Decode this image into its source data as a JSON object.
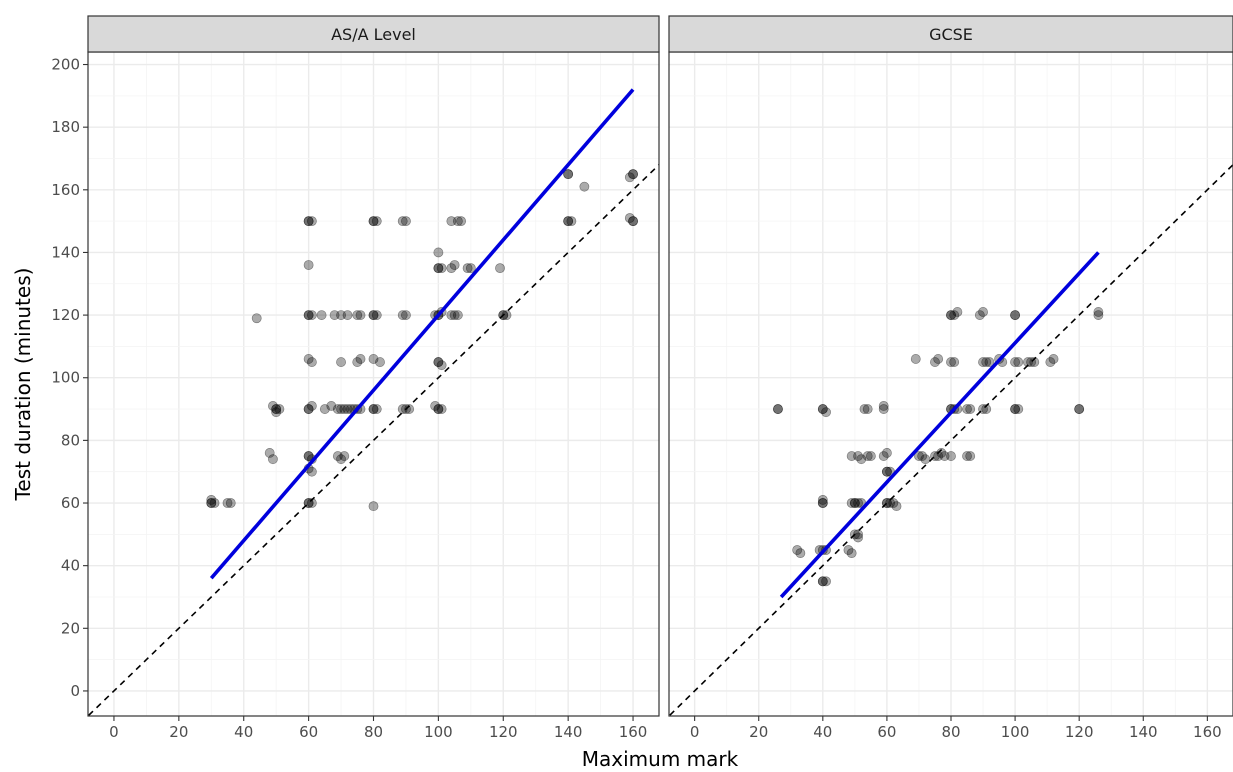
{
  "chart_data": {
    "type": "scatter",
    "xlabel": "Maximum mark",
    "ylabel": "Test duration (minutes)",
    "xlim": [
      -8,
      168
    ],
    "ylim": [
      -8,
      204
    ],
    "x_ticks": [
      0,
      20,
      40,
      60,
      80,
      100,
      120,
      140,
      160
    ],
    "y_ticks": [
      0,
      20,
      40,
      60,
      80,
      100,
      120,
      140,
      160,
      180,
      200
    ],
    "grid": true,
    "reference_line": {
      "style": "dashed",
      "slope": 1,
      "intercept": 0,
      "color": "#000000"
    },
    "fit_color": "#0000dd",
    "point_color": "#000000",
    "panels": [
      {
        "title": "AS/A Level",
        "fit_line": {
          "x": [
            30,
            160
          ],
          "y": [
            36,
            192
          ]
        },
        "points": [
          [
            30,
            60
          ],
          [
            30,
            60
          ],
          [
            31,
            60
          ],
          [
            30,
            61
          ],
          [
            35,
            60
          ],
          [
            36,
            60
          ],
          [
            44,
            119
          ],
          [
            48,
            76
          ],
          [
            49,
            74
          ],
          [
            50,
            90
          ],
          [
            50,
            90
          ],
          [
            49,
            91
          ],
          [
            51,
            90
          ],
          [
            50,
            89
          ],
          [
            60,
            150
          ],
          [
            60,
            150
          ],
          [
            61,
            150
          ],
          [
            60,
            136
          ],
          [
            60,
            120
          ],
          [
            60,
            120
          ],
          [
            61,
            120
          ],
          [
            64,
            120
          ],
          [
            60,
            106
          ],
          [
            61,
            105
          ],
          [
            60,
            90
          ],
          [
            60,
            90
          ],
          [
            61,
            91
          ],
          [
            60,
            75
          ],
          [
            60,
            75
          ],
          [
            61,
            74
          ],
          [
            60,
            71
          ],
          [
            61,
            70
          ],
          [
            60,
            60
          ],
          [
            60,
            60
          ],
          [
            61,
            60
          ],
          [
            65,
            90
          ],
          [
            67,
            91
          ],
          [
            69,
            90
          ],
          [
            70,
            90
          ],
          [
            71,
            90
          ],
          [
            72,
            90
          ],
          [
            73,
            90
          ],
          [
            74,
            90
          ],
          [
            75,
            90
          ],
          [
            76,
            90
          ],
          [
            68,
            120
          ],
          [
            70,
            120
          ],
          [
            72,
            120
          ],
          [
            75,
            120
          ],
          [
            76,
            120
          ],
          [
            70,
            105
          ],
          [
            75,
            105
          ],
          [
            76,
            106
          ],
          [
            69,
            75
          ],
          [
            70,
            74
          ],
          [
            71,
            75
          ],
          [
            80,
            150
          ],
          [
            80,
            150
          ],
          [
            81,
            150
          ],
          [
            80,
            120
          ],
          [
            80,
            120
          ],
          [
            81,
            120
          ],
          [
            80,
            106
          ],
          [
            82,
            105
          ],
          [
            80,
            90
          ],
          [
            80,
            90
          ],
          [
            81,
            90
          ],
          [
            80,
            59
          ],
          [
            90,
            150
          ],
          [
            89,
            150
          ],
          [
            90,
            120
          ],
          [
            89,
            120
          ],
          [
            90,
            90
          ],
          [
            89,
            90
          ],
          [
            91,
            90
          ],
          [
            100,
            140
          ],
          [
            100,
            135
          ],
          [
            100,
            135
          ],
          [
            101,
            135
          ],
          [
            100,
            120
          ],
          [
            100,
            120
          ],
          [
            99,
            120
          ],
          [
            101,
            121
          ],
          [
            100,
            105
          ],
          [
            100,
            105
          ],
          [
            101,
            104
          ],
          [
            100,
            90
          ],
          [
            100,
            90
          ],
          [
            101,
            90
          ],
          [
            99,
            91
          ],
          [
            104,
            150
          ],
          [
            106,
            150
          ],
          [
            107,
            150
          ],
          [
            104,
            135
          ],
          [
            105,
            136
          ],
          [
            109,
            135
          ],
          [
            110,
            135
          ],
          [
            104,
            120
          ],
          [
            105,
            120
          ],
          [
            106,
            120
          ],
          [
            119,
            135
          ],
          [
            120,
            120
          ],
          [
            120,
            120
          ],
          [
            121,
            120
          ],
          [
            140,
            165
          ],
          [
            140,
            165
          ],
          [
            140,
            150
          ],
          [
            140,
            150
          ],
          [
            141,
            150
          ],
          [
            145,
            161
          ],
          [
            160,
            165
          ],
          [
            160,
            165
          ],
          [
            159,
            164
          ],
          [
            160,
            150
          ],
          [
            160,
            150
          ],
          [
            159,
            151
          ]
        ]
      },
      {
        "title": "GCSE",
        "fit_line": {
          "x": [
            27,
            126
          ],
          "y": [
            30,
            140
          ]
        },
        "points": [
          [
            26,
            90
          ],
          [
            26,
            90
          ],
          [
            32,
            45
          ],
          [
            33,
            44
          ],
          [
            40,
            90
          ],
          [
            40,
            90
          ],
          [
            41,
            89
          ],
          [
            40,
            61
          ],
          [
            40,
            60
          ],
          [
            40,
            60
          ],
          [
            40,
            45
          ],
          [
            41,
            45
          ],
          [
            39,
            45
          ],
          [
            40,
            35
          ],
          [
            40,
            35
          ],
          [
            41,
            35
          ],
          [
            48,
            45
          ],
          [
            49,
            44
          ],
          [
            49,
            75
          ],
          [
            51,
            75
          ],
          [
            52,
            74
          ],
          [
            50,
            60
          ],
          [
            50,
            60
          ],
          [
            51,
            60
          ],
          [
            52,
            60
          ],
          [
            49,
            60
          ],
          [
            50,
            50
          ],
          [
            51,
            50
          ],
          [
            51,
            49
          ],
          [
            53,
            90
          ],
          [
            54,
            90
          ],
          [
            54,
            75
          ],
          [
            55,
            75
          ],
          [
            59,
            90
          ],
          [
            59,
            91
          ],
          [
            59,
            75
          ],
          [
            60,
            76
          ],
          [
            60,
            70
          ],
          [
            60,
            70
          ],
          [
            61,
            70
          ],
          [
            60,
            60
          ],
          [
            60,
            60
          ],
          [
            61,
            60
          ],
          [
            62,
            60
          ],
          [
            63,
            59
          ],
          [
            69,
            106
          ],
          [
            70,
            75
          ],
          [
            71,
            75
          ],
          [
            72,
            74
          ],
          [
            75,
            105
          ],
          [
            76,
            106
          ],
          [
            75,
            75
          ],
          [
            76,
            75
          ],
          [
            77,
            76
          ],
          [
            78,
            75
          ],
          [
            80,
            120
          ],
          [
            80,
            120
          ],
          [
            81,
            120
          ],
          [
            82,
            121
          ],
          [
            80,
            105
          ],
          [
            81,
            105
          ],
          [
            80,
            90
          ],
          [
            80,
            90
          ],
          [
            81,
            90
          ],
          [
            82,
            90
          ],
          [
            80,
            75
          ],
          [
            85,
            90
          ],
          [
            86,
            90
          ],
          [
            85,
            75
          ],
          [
            86,
            75
          ],
          [
            89,
            120
          ],
          [
            90,
            121
          ],
          [
            90,
            105
          ],
          [
            91,
            105
          ],
          [
            92,
            105
          ],
          [
            90,
            90
          ],
          [
            91,
            90
          ],
          [
            95,
            106
          ],
          [
            96,
            105
          ],
          [
            100,
            120
          ],
          [
            100,
            120
          ],
          [
            100,
            105
          ],
          [
            101,
            105
          ],
          [
            100,
            90
          ],
          [
            100,
            90
          ],
          [
            101,
            90
          ],
          [
            104,
            105
          ],
          [
            105,
            105
          ],
          [
            106,
            105
          ],
          [
            111,
            105
          ],
          [
            112,
            106
          ],
          [
            120,
            90
          ],
          [
            120,
            90
          ],
          [
            126,
            121
          ],
          [
            126,
            120
          ]
        ]
      }
    ]
  }
}
